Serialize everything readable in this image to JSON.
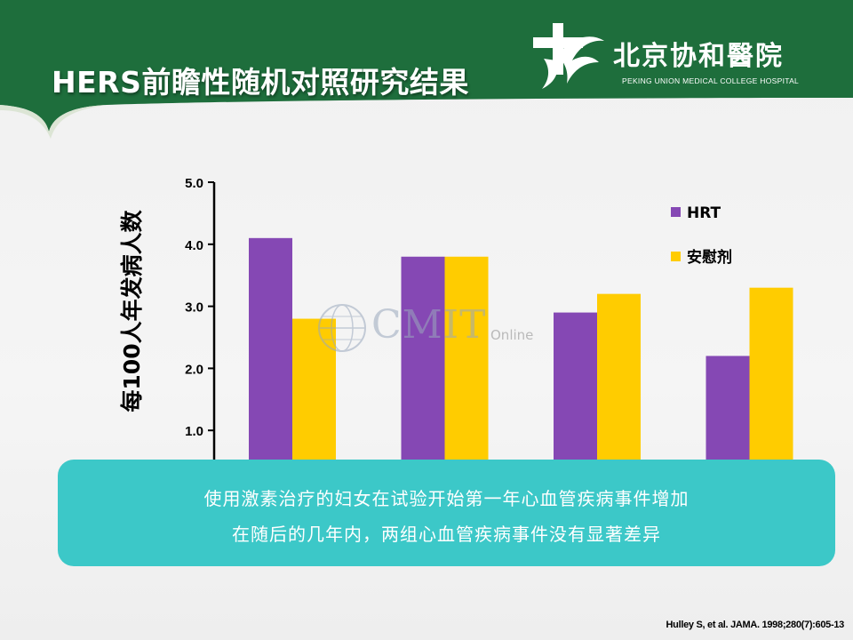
{
  "slide": {
    "title": "HERS前瞻性随机对照研究结果",
    "logo": {
      "name_cn": "北京协和醫院",
      "name_en": "PEKING UNION MEDICAL COLLEGE HOSPITAL"
    },
    "watermark": {
      "main": "CMIT",
      "sub": "Online"
    },
    "callout": {
      "line1": "使用激素治疗的妇女在试验开始第一年心血管疾病事件增加",
      "line2": "在随后的几年内，两组心血管疾病事件没有显著差异"
    },
    "citation": "Hulley S, et al. JAMA. 1998;280(7):605-13"
  },
  "colors": {
    "header_green": "#1e6e3c",
    "hrt": "#8548b4",
    "placebo": "#ffcc00",
    "callout": "#3cc8c8"
  },
  "chart_data": {
    "type": "bar",
    "ylabel": "每100人年发病人数",
    "ylim": [
      0,
      5
    ],
    "yticks": [
      "1.0",
      "2.0",
      "3.0",
      "4.0",
      "5.0"
    ],
    "yticks_values": [
      1,
      2,
      3,
      4,
      5
    ],
    "categories": [
      "",
      "",
      "",
      ""
    ],
    "series": [
      {
        "name": "HRT",
        "color": "#8548b4",
        "values": [
          4.1,
          3.8,
          2.9,
          2.2
        ]
      },
      {
        "name": "安慰剂",
        "color": "#ffcc00",
        "values": [
          2.8,
          3.8,
          3.2,
          3.3
        ]
      }
    ],
    "legend_position": "top-right",
    "grid": false
  }
}
